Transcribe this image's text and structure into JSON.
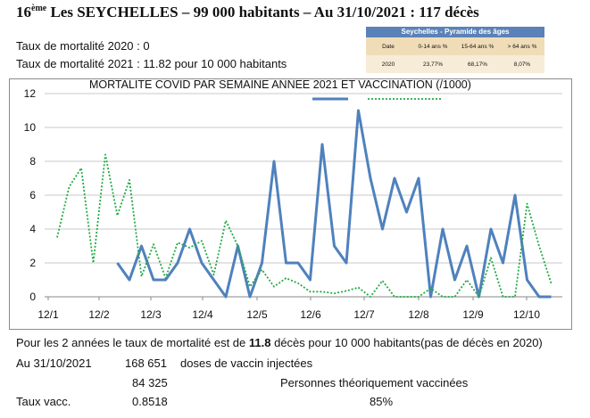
{
  "header": {
    "sup": "ème",
    "rank": "16",
    "text": " Les SEYCHELLES – 99 000 habitants – Au 31/10/2021 : 117 décès"
  },
  "rates": {
    "line1": "Taux de mortalité 2020 :   0",
    "line2": "Taux de mortalité 2021 : 11.82 pour 10 000 habitants"
  },
  "pyramid": {
    "title": "Seychelles - Pyramide des âges",
    "headers": [
      "Date",
      "0-14 ans %",
      "15-64 ans %",
      "> 64 ans %"
    ],
    "row": [
      "2020",
      "23,77%",
      "68,17%",
      "8,07%"
    ]
  },
  "chart_data": {
    "type": "line",
    "title": "MORTALITE COVID PAR SEMAINE ANNEE 2021 ET VACCINATION (/1000)",
    "xlabel": "",
    "ylabel": "",
    "ylim": [
      0,
      12
    ],
    "yticks": [
      "0",
      "2",
      "4",
      "6",
      "8",
      "10",
      "12"
    ],
    "xticks": [
      "12/1",
      "12/2",
      "12/3",
      "12/4",
      "12/5",
      "12/6",
      "12/7",
      "12/8",
      "12/9",
      "12/10"
    ],
    "grid": true,
    "legend": "top-center",
    "series": [
      {
        "style": "solid",
        "color": "#4f81bd",
        "values": [
          null,
          null,
          null,
          null,
          null,
          2,
          1,
          3,
          1,
          1,
          2,
          4,
          2,
          1,
          0,
          3,
          0,
          2,
          8,
          2,
          2,
          1,
          9,
          3,
          2,
          11,
          7,
          4,
          7,
          5,
          7,
          0,
          4,
          1,
          3,
          0,
          4,
          2,
          6,
          1,
          0,
          0
        ]
      },
      {
        "style": "dotted",
        "color": "#22aa44",
        "values": [
          3.5,
          6.5,
          7.6,
          2.0,
          8.4,
          4.8,
          6.9,
          1.2,
          3.1,
          1.1,
          3.2,
          2.9,
          3.3,
          1.3,
          4.5,
          3.0,
          0.6,
          1.6,
          0.6,
          1.1,
          0.8,
          0.3,
          0.3,
          0.2,
          0.35,
          0.55,
          0.0,
          0.95,
          0.0,
          0.0,
          0.0,
          0.5,
          0.0,
          0.0,
          1.0,
          0.0,
          2.3,
          0.0,
          0.0,
          5.5,
          3.0,
          0.8
        ]
      }
    ]
  },
  "footer": {
    "line1_pre": "Pour les 2 années le taux de mortalité est de ",
    "line1_bold": "11.8",
    "line1_post": " décès pour 10 000 habitants(pas de décès en 2020)",
    "date": "Au 31/10/2021",
    "doses_value": "168 651",
    "doses_label": "doses de vaccin injectées",
    "persons_value": "84 325",
    "persons_label": "Personnes théoriquement vaccinées",
    "rate_label": "Taux vacc.",
    "rate_value": "0.8518",
    "rate_pct": "85%"
  }
}
